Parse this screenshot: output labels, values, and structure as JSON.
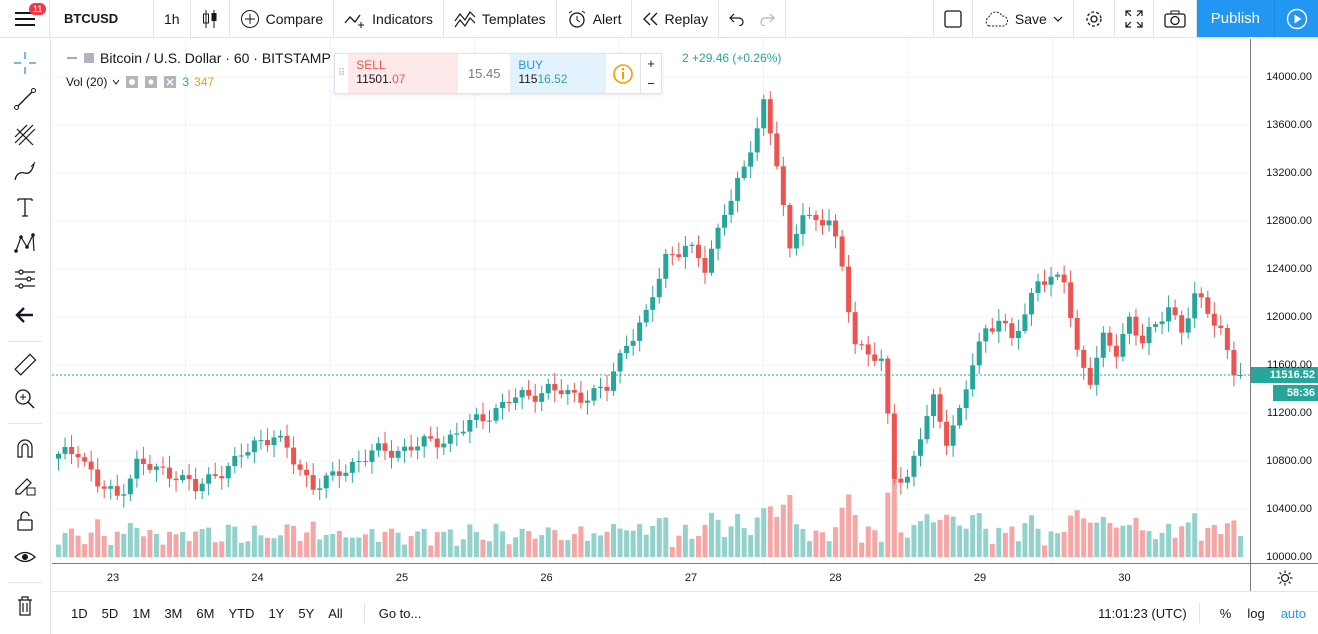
{
  "topbar": {
    "notification_count": "11",
    "symbol": "BTCUSD",
    "interval": "1h",
    "compare": "Compare",
    "indicators": "Indicators",
    "templates": "Templates",
    "alert": "Alert",
    "replay": "Replay",
    "save": "Save",
    "publish": "Publish"
  },
  "legend": {
    "title": "Bitcoin / U.S. Dollar · 60 · BITSTAMP",
    "change": "2  +29.46 (+0.26%)",
    "vol_label": "Vol (20)",
    "vol_a": "3",
    "vol_b": "347"
  },
  "trade": {
    "sell_label": "SELL",
    "sell_price_main": "11501.",
    "sell_price_tail": "07",
    "spread": "15.45",
    "buy_label": "BUY",
    "buy_price_main": "115",
    "buy_price_tail": "16.52",
    "plus": "+",
    "minus": "−"
  },
  "price_scale": {
    "ticks": [
      "14000.00",
      "13600.00",
      "13200.00",
      "12800.00",
      "12400.00",
      "12000.00",
      "11600.00",
      "11200.00",
      "10800.00",
      "10400.00",
      "10000.00"
    ],
    "last_price": "11516.52",
    "countdown": "58:36"
  },
  "time_axis": {
    "labels": [
      "23",
      "24",
      "25",
      "26",
      "27",
      "28",
      "29",
      "30"
    ]
  },
  "bottombar": {
    "ranges": [
      "1D",
      "5D",
      "1M",
      "3M",
      "6M",
      "YTD",
      "1Y",
      "5Y",
      "All"
    ],
    "goto": "Go to...",
    "clock": "11:01:23 (UTC)",
    "percent": "%",
    "log": "log",
    "auto": "auto"
  },
  "colors": {
    "up": "#26a69a",
    "down": "#ef5350",
    "up_vol": "#93d2cc",
    "down_vol": "#f5a6a5",
    "accent": "#2196f3"
  },
  "chart_data": {
    "type": "candlestick",
    "ylim": [
      9950,
      14250
    ],
    "price_ticks": [
      14000,
      13600,
      13200,
      12800,
      12400,
      12000,
      11600,
      11200,
      10800,
      10400,
      10000
    ],
    "x_day_labels": [
      "23",
      "24",
      "25",
      "26",
      "27",
      "28",
      "29",
      "30"
    ],
    "last_price": 11516.52,
    "close_points": [
      [
        0,
        10830
      ],
      [
        3,
        10900
      ],
      [
        6,
        10600
      ],
      [
        9,
        10500
      ],
      [
        12,
        10780
      ],
      [
        15,
        10720
      ],
      [
        18,
        10700
      ],
      [
        21,
        10560
      ],
      [
        24,
        10700
      ],
      [
        27,
        10780
      ],
      [
        30,
        10950
      ],
      [
        33,
        11020
      ],
      [
        36,
        10800
      ],
      [
        39,
        10600
      ],
      [
        42,
        10650
      ],
      [
        45,
        10780
      ],
      [
        48,
        10870
      ],
      [
        51,
        10880
      ],
      [
        54,
        10920
      ],
      [
        57,
        10950
      ],
      [
        60,
        11000
      ],
      [
        63,
        11100
      ],
      [
        66,
        11200
      ],
      [
        69,
        11300
      ],
      [
        72,
        11350
      ],
      [
        75,
        11400
      ],
      [
        78,
        11350
      ],
      [
        81,
        11350
      ],
      [
        84,
        11400
      ],
      [
        87,
        11800
      ],
      [
        90,
        12000
      ],
      [
        93,
        12500
      ],
      [
        96,
        12600
      ],
      [
        99,
        12400
      ],
      [
        102,
        12900
      ],
      [
        105,
        13200
      ],
      [
        108,
        13800
      ],
      [
        110,
        13300
      ],
      [
        112,
        12500
      ],
      [
        114,
        12900
      ],
      [
        116,
        12800
      ],
      [
        118,
        12800
      ],
      [
        120,
        12400
      ],
      [
        122,
        11800
      ],
      [
        124,
        11700
      ],
      [
        126,
        11600
      ],
      [
        128,
        10700
      ],
      [
        130,
        10650
      ],
      [
        132,
        11000
      ],
      [
        134,
        11300
      ],
      [
        136,
        11000
      ],
      [
        138,
        11200
      ],
      [
        140,
        11600
      ],
      [
        142,
        11900
      ],
      [
        144,
        12000
      ],
      [
        146,
        11800
      ],
      [
        148,
        12000
      ],
      [
        150,
        12350
      ],
      [
        152,
        12300
      ],
      [
        154,
        12300
      ],
      [
        156,
        11700
      ],
      [
        158,
        11500
      ],
      [
        160,
        11800
      ],
      [
        162,
        11700
      ],
      [
        164,
        12000
      ],
      [
        166,
        11800
      ],
      [
        168,
        11900
      ],
      [
        170,
        12100
      ],
      [
        172,
        11900
      ],
      [
        174,
        12150
      ],
      [
        176,
        12050
      ],
      [
        178,
        11900
      ],
      [
        180,
        11550
      ],
      [
        181,
        11520
      ]
    ]
  }
}
